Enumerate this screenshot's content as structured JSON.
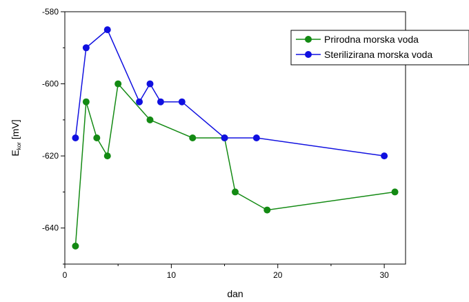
{
  "chart_data": {
    "type": "line",
    "xlabel": "dan",
    "ylabel_main": "E",
    "ylabel_sub": "kor",
    "ylabel_unit": "[mV]",
    "xlim": [
      0,
      32
    ],
    "ylim": [
      -650,
      -580
    ],
    "xticks": [
      0,
      10,
      20,
      30
    ],
    "yticks": [
      -640,
      -620,
      -600,
      -580
    ],
    "legend_position": "top-right",
    "grid": false,
    "series": [
      {
        "name": "Prirodna morska voda",
        "color": "#138a13",
        "x": [
          1,
          2,
          3,
          4,
          5,
          8,
          12,
          15,
          16,
          19,
          31
        ],
        "y": [
          -645,
          -605,
          -615,
          -620,
          -600,
          -610,
          -615,
          -615,
          -630,
          -635,
          -630
        ]
      },
      {
        "name": "Sterilizirana morska voda",
        "color": "#1010e0",
        "x": [
          1,
          2,
          4,
          7,
          8,
          9,
          11,
          15,
          18,
          30
        ],
        "y": [
          -615,
          -590,
          -585,
          -605,
          -600,
          -605,
          -605,
          -615,
          -615,
          -620
        ]
      }
    ]
  }
}
